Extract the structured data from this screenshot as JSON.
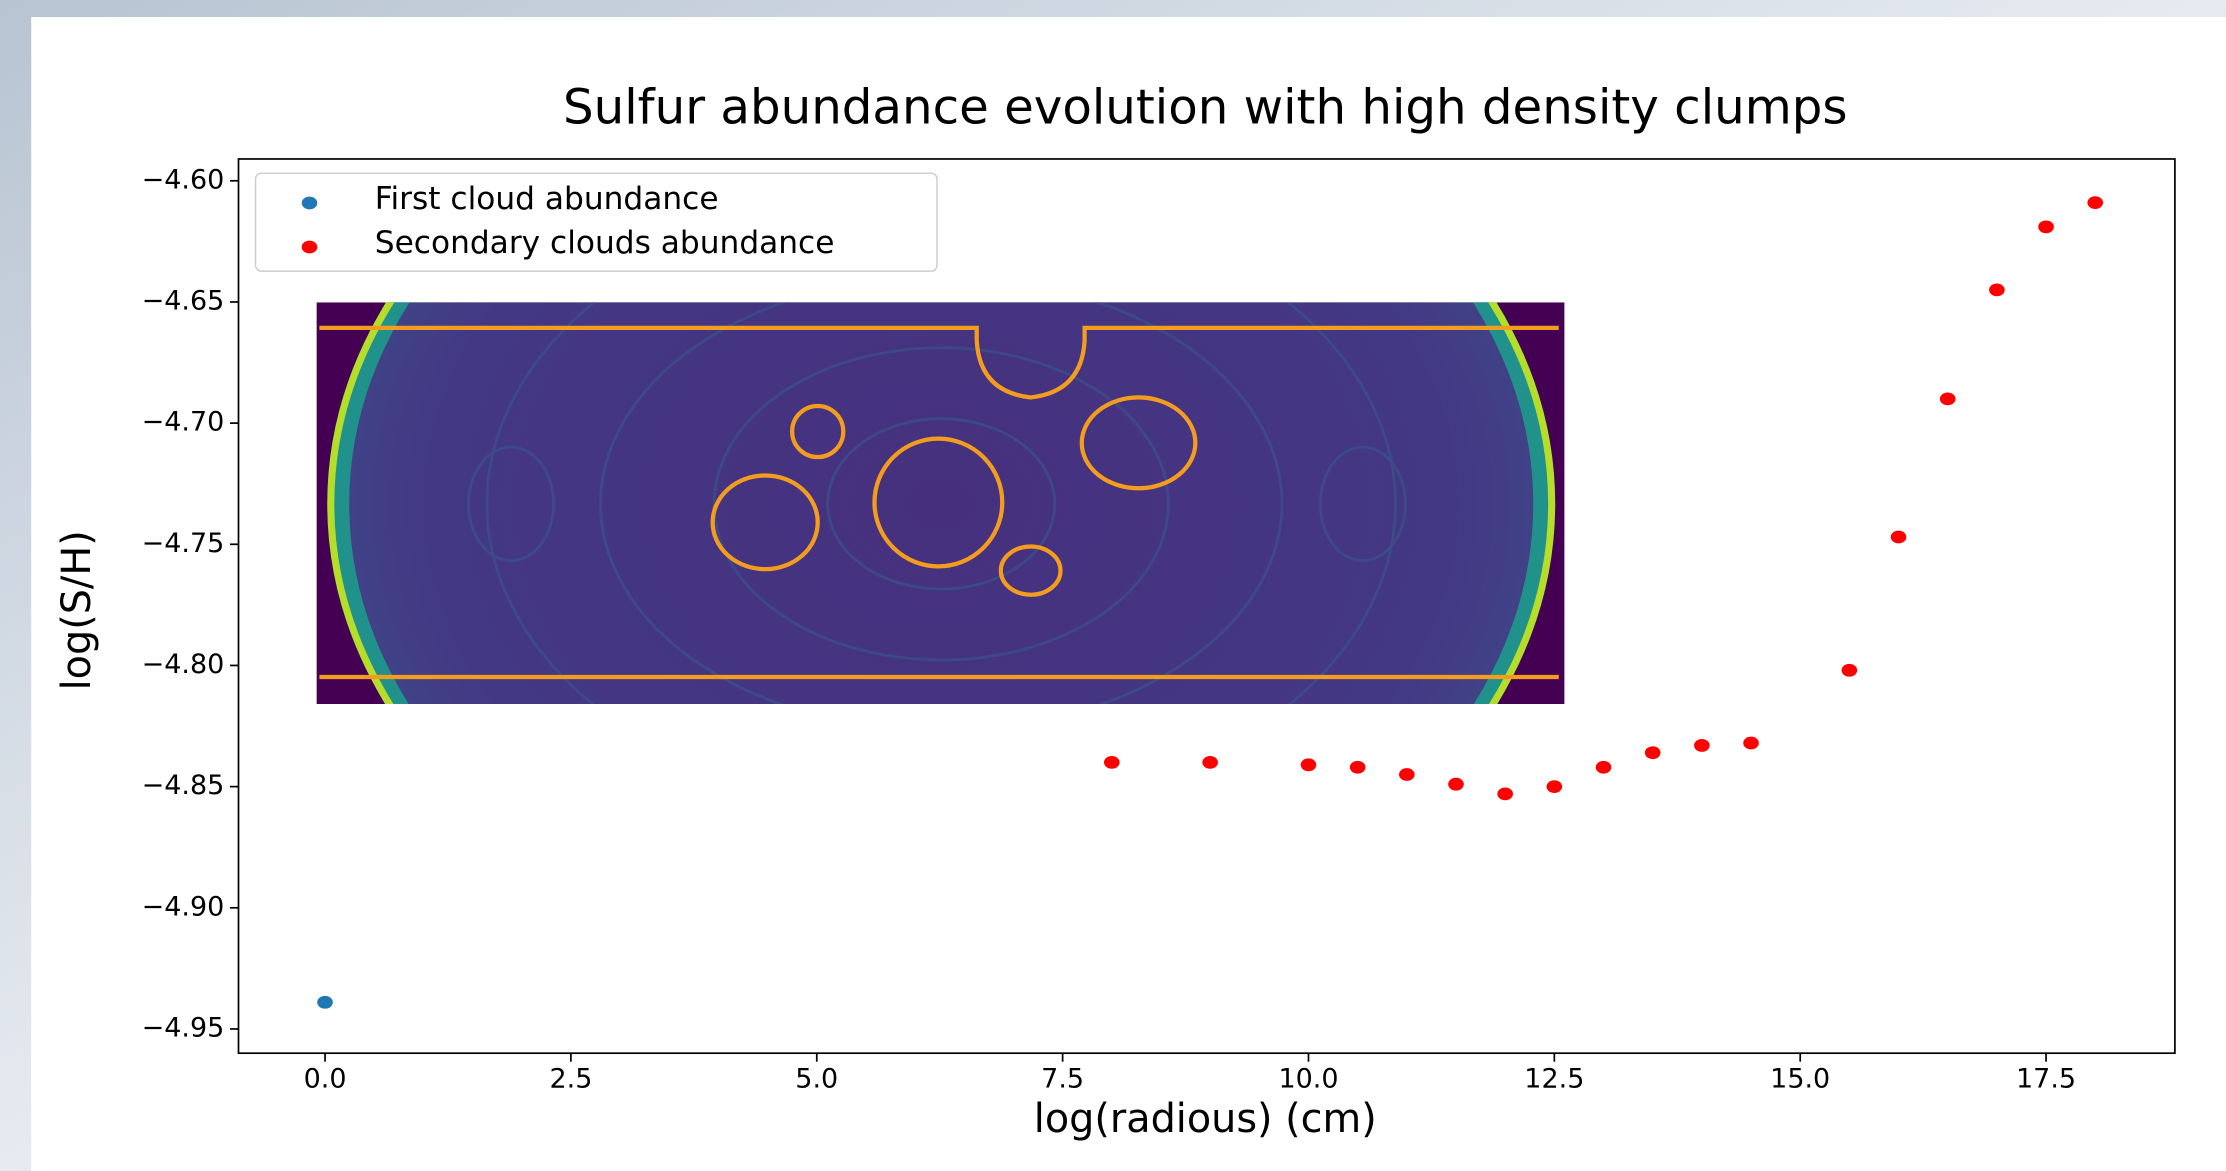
{
  "chart_data": {
    "type": "scatter",
    "title": "Sulfur abundance evolution with high density clumps",
    "x_label": "log(radious) (cm)",
    "y_label": "log(S/H)",
    "xlim": [
      -0.88,
      18.81
    ],
    "ylim": [
      -4.96,
      -4.591
    ],
    "xticks": [
      {
        "value": 0,
        "label": "0.0"
      },
      2.5,
      {
        "value": 5,
        "label": "5.0"
      },
      7.5,
      {
        "value": 10,
        "label": "10.0"
      },
      12.5,
      {
        "value": 15,
        "label": "15.0"
      },
      17.5
    ],
    "yticks": [
      {
        "value": -4.6,
        "label": "−4.60"
      },
      {
        "value": -4.65,
        "label": "−4.65"
      },
      {
        "value": -4.7,
        "label": "−4.70"
      },
      {
        "value": -4.75,
        "label": "−4.75"
      },
      {
        "value": -4.8,
        "label": "−4.80"
      },
      {
        "value": -4.85,
        "label": "−4.85"
      },
      {
        "value": -4.9,
        "label": "−4.90"
      },
      {
        "value": -4.95,
        "label": "−4.95"
      }
    ],
    "legend": "upper left",
    "series": [
      {
        "name": "First cloud abundance",
        "color": "#1f77b4",
        "x": [
          0
        ],
        "values": [
          -4.939
        ]
      },
      {
        "name": "Secondary clouds abundance",
        "color": "#ff0000",
        "x": [
          8,
          9,
          10,
          10.5,
          11,
          11.5,
          12,
          12.5,
          13,
          13.5,
          14,
          14.5,
          15.5,
          16,
          16.5,
          17,
          17.5,
          18
        ],
        "values": [
          -4.84,
          -4.84,
          -4.841,
          -4.842,
          -4.845,
          -4.849,
          -4.853,
          -4.85,
          -4.842,
          -4.836,
          -4.833,
          -4.832,
          -4.802,
          -4.747,
          -4.69,
          -4.645,
          -4.619,
          -4.609
        ]
      }
    ]
  }
}
